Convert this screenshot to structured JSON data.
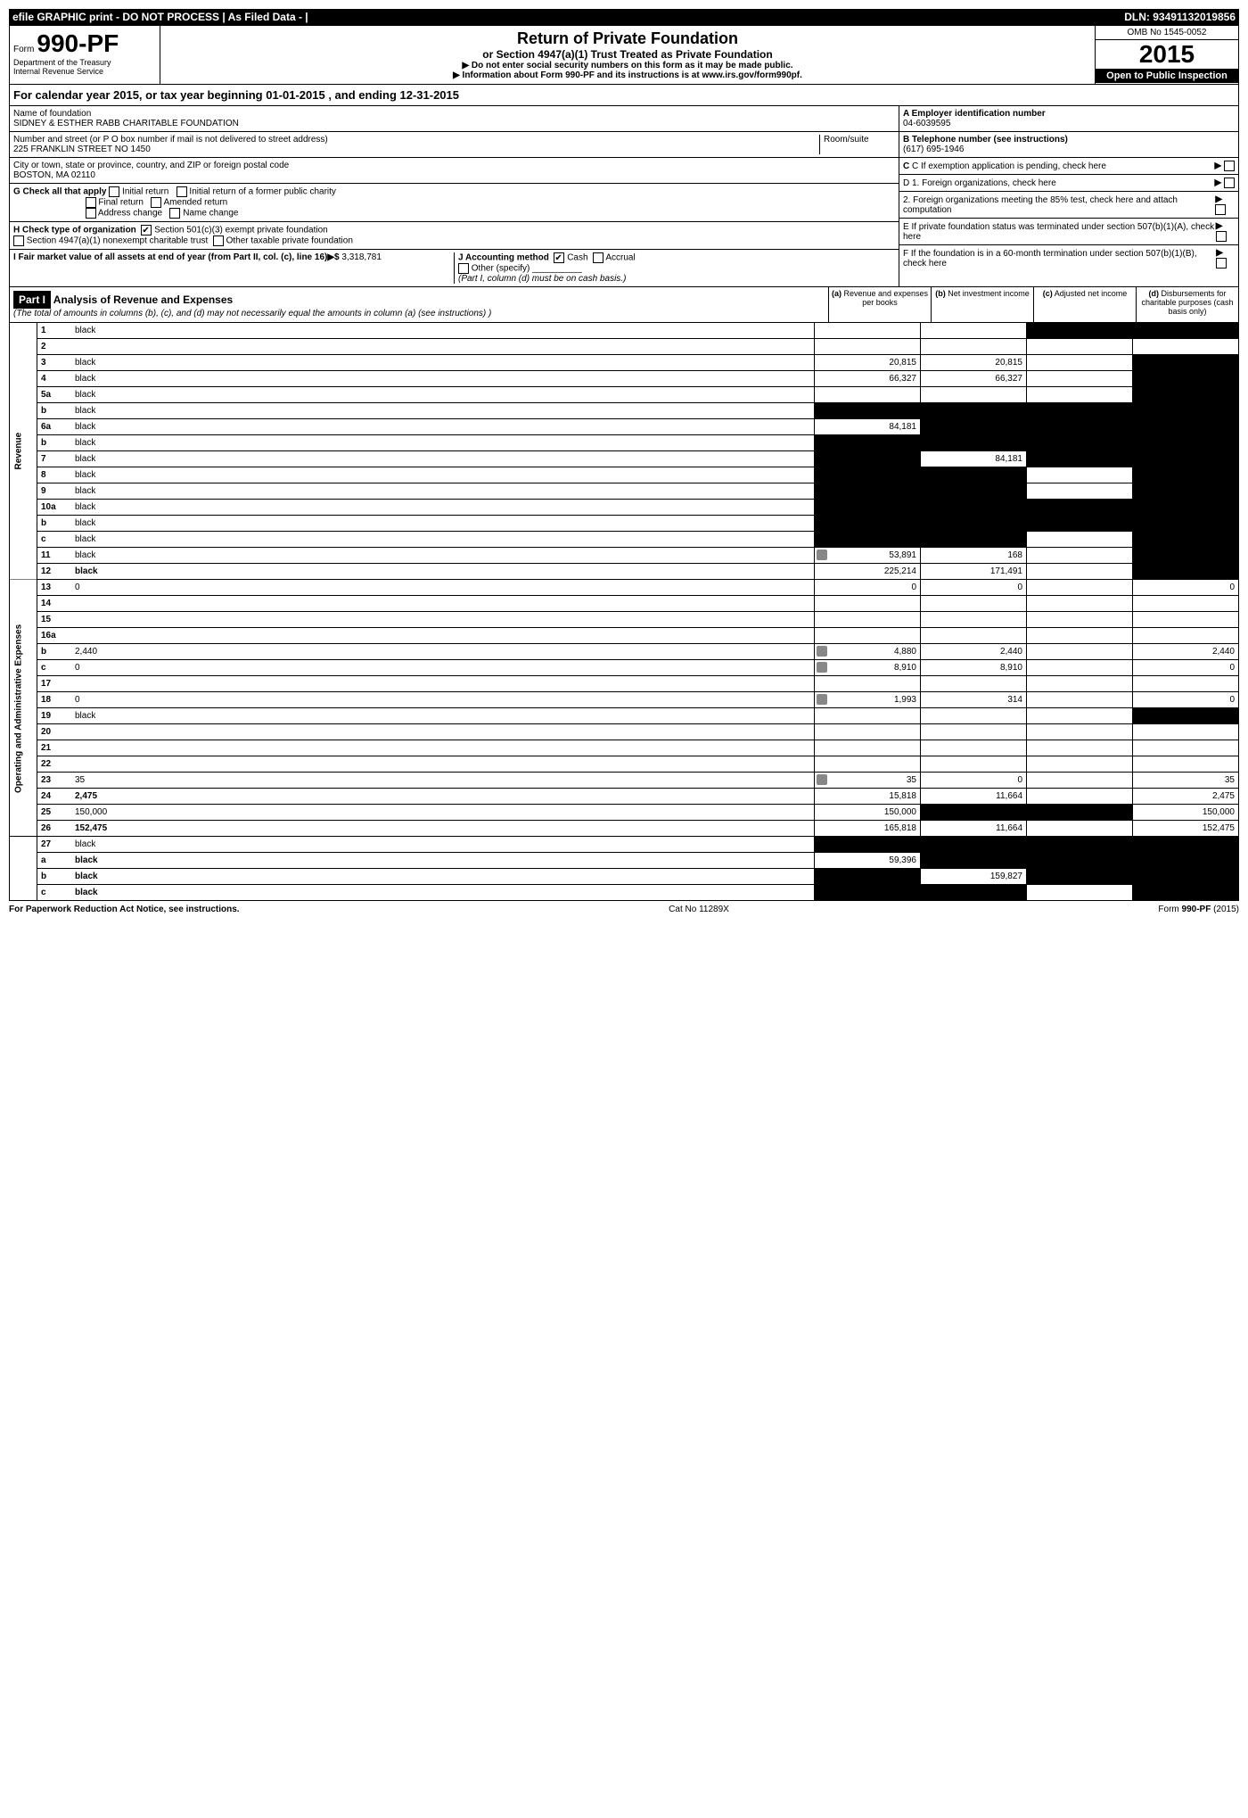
{
  "topbar": {
    "left": "efile GRAPHIC print - DO NOT PROCESS    | As Filed Data - |",
    "right": "DLN: 93491132019856"
  },
  "header": {
    "form_prefix": "Form",
    "form_number": "990-PF",
    "dept1": "Department of the Treasury",
    "dept2": "Internal Revenue Service",
    "title": "Return of Private Foundation",
    "subtitle": "or Section 4947(a)(1) Trust Treated as Private Foundation",
    "instr1": "▶ Do not enter social security numbers on this form as it may be made public.",
    "instr2": "▶ Information about Form 990-PF and its instructions is at www.irs.gov/form990pf.",
    "omb": "OMB No 1545-0052",
    "year": "2015",
    "open": "Open to Public Inspection"
  },
  "calyear": "For calendar year 2015, or tax year beginning 01-01-2015           , and ending 12-31-2015",
  "info": {
    "name_label": "Name of foundation",
    "name": "SIDNEY & ESTHER RABB CHARITABLE FOUNDATION",
    "addr_label": "Number and street (or P O box number if mail is not delivered to street address)",
    "addr": "225 FRANKLIN STREET NO 1450",
    "room_label": "Room/suite",
    "city_label": "City or town, state or province, country, and ZIP or foreign postal code",
    "city": "BOSTON, MA 02110",
    "g_label": "G Check all that apply",
    "g_opts": [
      "Initial return",
      "Initial return of a former public charity",
      "Final return",
      "Amended return",
      "Address change",
      "Name change"
    ],
    "h_label": "H Check type of organization",
    "h_opt1": "Section 501(c)(3) exempt private foundation",
    "h_opt2": "Section 4947(a)(1) nonexempt charitable trust",
    "h_opt3": "Other taxable private foundation",
    "i_label": "I Fair market value of all assets at end of year (from Part II, col. (c), line 16)▶$",
    "i_val": "3,318,781",
    "j_label": "J Accounting method",
    "j_cash": "Cash",
    "j_accrual": "Accrual",
    "j_other": "Other (specify)",
    "j_note": "(Part I, column (d) must be on cash basis.)",
    "a_label": "A Employer identification number",
    "a_val": "04-6039595",
    "b_label": "B Telephone number (see instructions)",
    "b_val": "(617) 695-1946",
    "c_label": "C If exemption application is pending, check here",
    "d1_label": "D 1. Foreign organizations, check here",
    "d2_label": "2. Foreign organizations meeting the 85% test, check here and attach computation",
    "e_label": "E If private foundation status was terminated under section 507(b)(1)(A), check here",
    "f_label": "F If the foundation is in a 60-month termination under section 507(b)(1)(B), check here"
  },
  "part1": {
    "label": "Part I",
    "title": "Analysis of Revenue and Expenses",
    "note": "(The total of amounts in columns (b), (c), and (d) may not necessarily equal the amounts in column (a) (see instructions) )",
    "col_a": "Revenue and expenses per books",
    "col_b": "Net investment income",
    "col_c": "Adjusted net income",
    "col_d": "Disbursements for charitable purposes (cash basis only)"
  },
  "sidebars": {
    "revenue": "Revenue",
    "expenses": "Operating and Administrative Expenses"
  },
  "rows": [
    {
      "n": "1",
      "d": "black",
      "a": "",
      "b": "",
      "c": "black"
    },
    {
      "n": "2",
      "d": "",
      "a": "",
      "b": "",
      "c": ""
    },
    {
      "n": "3",
      "d": "black",
      "a": "20,815",
      "b": "20,815",
      "c": ""
    },
    {
      "n": "4",
      "d": "black",
      "a": "66,327",
      "b": "66,327",
      "c": ""
    },
    {
      "n": "5a",
      "d": "black",
      "a": "",
      "b": "",
      "c": ""
    },
    {
      "n": "b",
      "d": "black",
      "a": "black",
      "b": "black",
      "c": "black"
    },
    {
      "n": "6a",
      "d": "black",
      "a": "84,181",
      "b": "black",
      "c": "black"
    },
    {
      "n": "b",
      "d": "black",
      "a": "black",
      "b": "black",
      "c": "black"
    },
    {
      "n": "7",
      "d": "black",
      "a": "black",
      "b": "84,181",
      "c": "black"
    },
    {
      "n": "8",
      "d": "black",
      "a": "black",
      "b": "black",
      "c": ""
    },
    {
      "n": "9",
      "d": "black",
      "a": "black",
      "b": "black",
      "c": ""
    },
    {
      "n": "10a",
      "d": "black",
      "a": "black",
      "b": "black",
      "c": "black"
    },
    {
      "n": "b",
      "d": "black",
      "a": "black",
      "b": "black",
      "c": "black"
    },
    {
      "n": "c",
      "d": "black",
      "a": "black",
      "b": "black",
      "c": ""
    },
    {
      "n": "11",
      "d": "black",
      "a": "53,891",
      "b": "168",
      "c": "",
      "icon": true
    },
    {
      "n": "12",
      "d": "black",
      "a": "225,214",
      "b": "171,491",
      "c": "",
      "bold": true
    }
  ],
  "rows2": [
    {
      "n": "13",
      "d": "0",
      "a": "0",
      "b": "0",
      "c": ""
    },
    {
      "n": "14",
      "d": "",
      "a": "",
      "b": "",
      "c": ""
    },
    {
      "n": "15",
      "d": "",
      "a": "",
      "b": "",
      "c": ""
    },
    {
      "n": "16a",
      "d": "",
      "a": "",
      "b": "",
      "c": ""
    },
    {
      "n": "b",
      "d": "2,440",
      "a": "4,880",
      "b": "2,440",
      "c": "",
      "icon": true
    },
    {
      "n": "c",
      "d": "0",
      "a": "8,910",
      "b": "8,910",
      "c": "",
      "icon": true
    },
    {
      "n": "17",
      "d": "",
      "a": "",
      "b": "",
      "c": ""
    },
    {
      "n": "18",
      "d": "0",
      "a": "1,993",
      "b": "314",
      "c": "",
      "icon": true
    },
    {
      "n": "19",
      "d": "black",
      "a": "",
      "b": "",
      "c": ""
    },
    {
      "n": "20",
      "d": "",
      "a": "",
      "b": "",
      "c": ""
    },
    {
      "n": "21",
      "d": "",
      "a": "",
      "b": "",
      "c": ""
    },
    {
      "n": "22",
      "d": "",
      "a": "",
      "b": "",
      "c": ""
    },
    {
      "n": "23",
      "d": "35",
      "a": "35",
      "b": "0",
      "c": "",
      "icon": true
    },
    {
      "n": "24",
      "d": "2,475",
      "a": "15,818",
      "b": "11,664",
      "c": "",
      "bold": true
    },
    {
      "n": "25",
      "d": "150,000",
      "a": "150,000",
      "b": "black",
      "c": "black"
    },
    {
      "n": "26",
      "d": "152,475",
      "a": "165,818",
      "b": "11,664",
      "c": "",
      "bold": true
    }
  ],
  "rows3": [
    {
      "n": "27",
      "d": "black",
      "a": "black",
      "b": "black",
      "c": "black"
    },
    {
      "n": "a",
      "d": "black",
      "a": "59,396",
      "b": "black",
      "c": "black",
      "bold": true
    },
    {
      "n": "b",
      "d": "black",
      "a": "black",
      "b": "159,827",
      "c": "black",
      "bold": true
    },
    {
      "n": "c",
      "d": "black",
      "a": "black",
      "b": "black",
      "c": "",
      "bold": true
    }
  ],
  "footer": {
    "left": "For Paperwork Reduction Act Notice, see instructions.",
    "center": "Cat No 11289X",
    "right": "Form 990-PF (2015)"
  }
}
